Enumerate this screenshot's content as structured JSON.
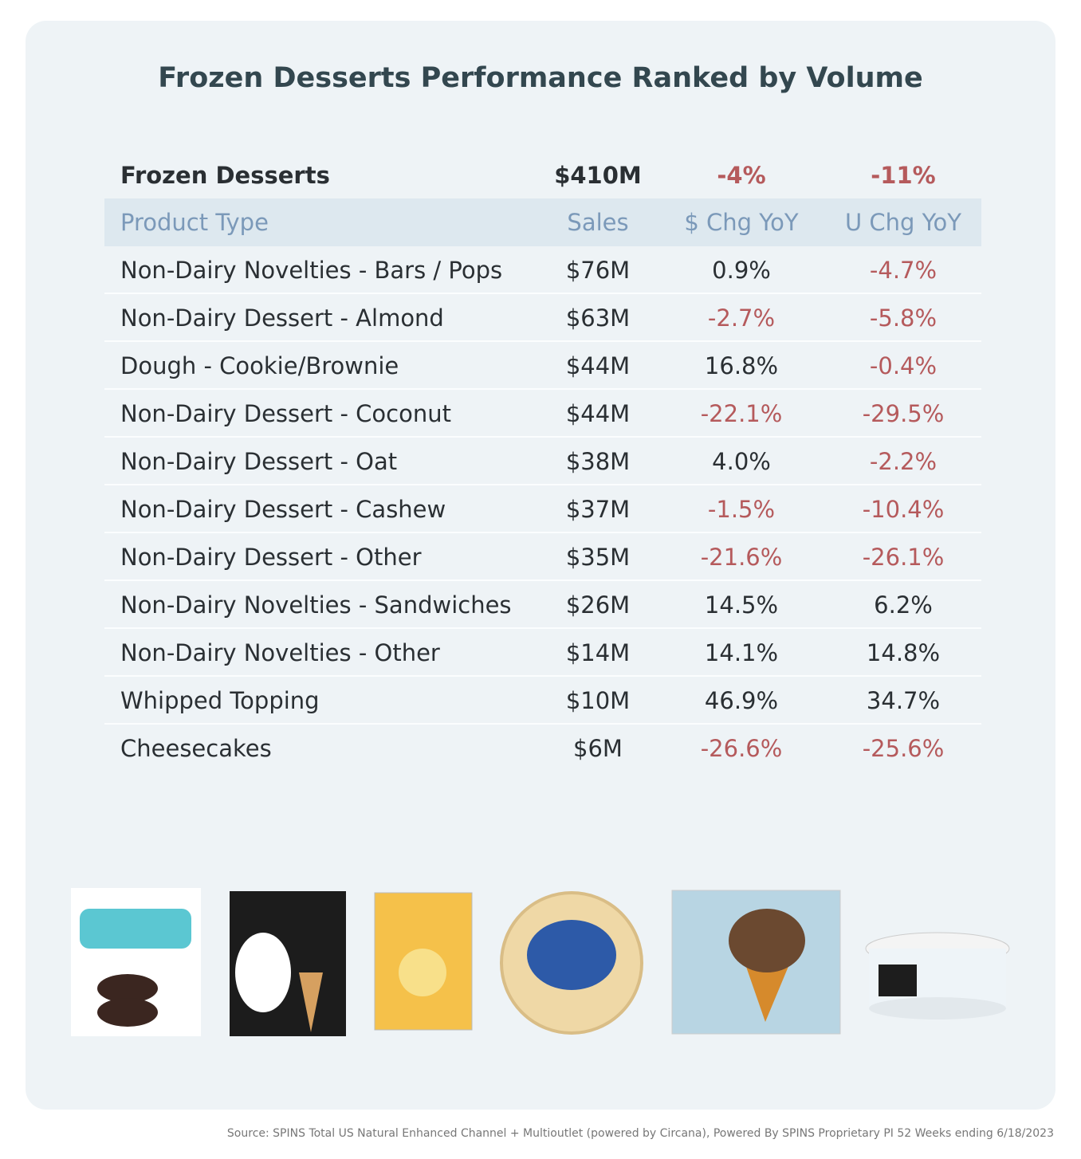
{
  "title": "Frozen Desserts Performance Ranked by Volume",
  "summary": [
    "Frozen Desserts",
    "$410M",
    "-4%",
    "-11%"
  ],
  "table": {
    "header": [
      "Product Type",
      "Sales",
      "$ Chg YoY",
      "U Chg YoY"
    ],
    "rows": [
      [
        "Non-Dairy Novelties - Bars / Pops",
        "$76M",
        "0.9%",
        "-4.7%"
      ],
      [
        "Non-Dairy Dessert - Almond",
        "$63M",
        "-2.7%",
        "-5.8%"
      ],
      [
        "Dough - Cookie/Brownie",
        "$44M",
        "16.8%",
        "-0.4%"
      ],
      [
        "Non-Dairy Dessert - Coconut",
        "$44M",
        "-22.1%",
        "-29.5%"
      ],
      [
        "Non-Dairy Dessert - Oat",
        "$38M",
        "4.0%",
        "-2.2%"
      ],
      [
        "Non-Dairy Dessert - Cashew",
        "$37M",
        "-1.5%",
        "-10.4%"
      ],
      [
        "Non-Dairy Dessert - Other",
        "$35M",
        "-21.6%",
        "-26.1%"
      ],
      [
        "Non-Dairy Novelties - Sandwiches",
        "$26M",
        "14.5%",
        "6.2%"
      ],
      [
        "Non-Dairy Novelties - Other",
        "$14M",
        "14.1%",
        "14.8%"
      ],
      [
        "Whipped Topping",
        "$10M",
        "46.9%",
        "34.7%"
      ],
      [
        "Cheesecakes",
        "$6M",
        "-26.6%",
        "-25.6%"
      ]
    ]
  },
  "source": "Source: SPINS Total US Natural Enhanced Channel + Multioutlet (powered by Circana), Powered By SPINS Proprietary PI 52 Weeks ending 6/18/2023"
}
